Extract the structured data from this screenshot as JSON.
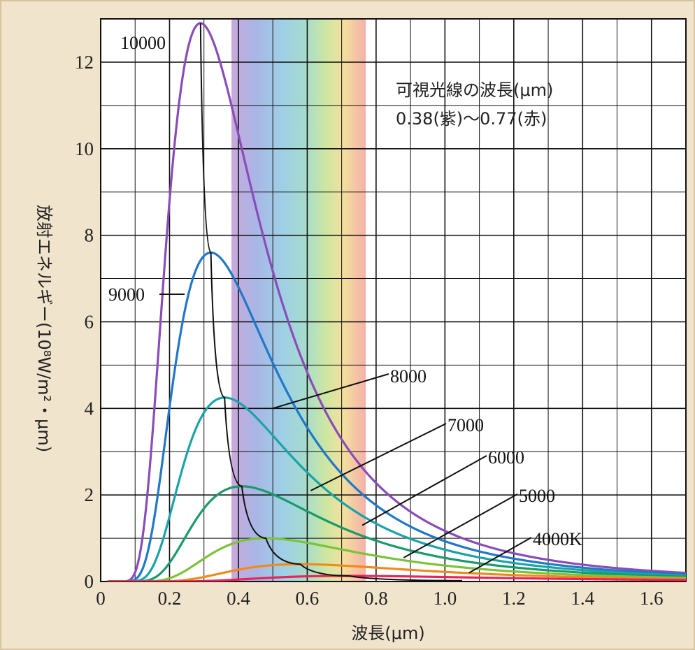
{
  "chart_data": {
    "type": "line",
    "xlabel": "波長(μm)",
    "ylabel": "放射エネルギー(10⁸W/m²・μm)",
    "xlim": [
      0,
      1.7
    ],
    "ylim": [
      0,
      13
    ],
    "x_ticks": [
      "0",
      "0.2",
      "0.4",
      "0.6",
      "0.8",
      "1.0",
      "1.2",
      "1.4",
      "1.6"
    ],
    "y_ticks": [
      "0",
      "2",
      "4",
      "6",
      "8",
      "10",
      "12"
    ],
    "grid": true,
    "visible_band": {
      "from": 0.38,
      "to": 0.77
    },
    "annotation_lines": [
      "可視光線の波長(μm)",
      "0.38(紫)〜0.77(赤)"
    ],
    "series": [
      {
        "name": "10000",
        "temperature_K": 10000,
        "color": "#8a4cb8",
        "peak_x": 0.29,
        "peak_y": 12.9
      },
      {
        "name": "9000",
        "temperature_K": 9000,
        "color": "#1f78c8",
        "peak_x": 0.32,
        "peak_y": 7.6
      },
      {
        "name": "8000",
        "temperature_K": 8000,
        "color": "#1aa3a8",
        "peak_x": 0.36,
        "peak_y": 4.25
      },
      {
        "name": "7000",
        "temperature_K": 7000,
        "color": "#1a9a6a",
        "peak_x": 0.41,
        "peak_y": 2.2
      },
      {
        "name": "6000",
        "temperature_K": 6000,
        "color": "#7cc23a",
        "peak_x": 0.48,
        "peak_y": 1.0
      },
      {
        "name": "5000",
        "temperature_K": 5000,
        "color": "#f08a1c",
        "peak_x": 0.58,
        "peak_y": 0.4
      },
      {
        "name": "4000K",
        "temperature_K": 4000,
        "color": "#e8245a",
        "peak_x": 0.72,
        "peak_y": 0.13
      }
    ],
    "peak_locus": {
      "color": "#111111",
      "points": [
        [
          0.29,
          12.9
        ],
        [
          0.32,
          7.6
        ],
        [
          0.36,
          4.25
        ],
        [
          0.41,
          2.2
        ],
        [
          0.48,
          1.0
        ],
        [
          0.58,
          0.4
        ],
        [
          0.72,
          0.13
        ],
        [
          1.05,
          0.02
        ]
      ]
    }
  }
}
